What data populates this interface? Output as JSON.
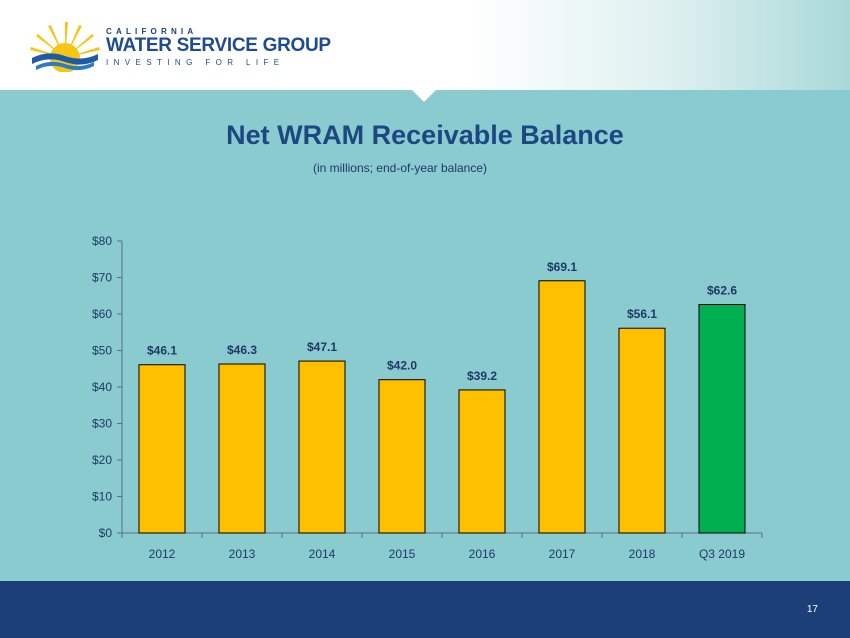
{
  "brand": {
    "line1": "CALIFORNIA",
    "line2": "WATER SERVICE GROUP",
    "line3": "INVESTING FOR LIFE"
  },
  "slide": {
    "title": "Net WRAM Receivable Balance",
    "subtitle": "(in millions; end-of-year balance)",
    "page_number": "17"
  },
  "colors": {
    "bar_default": "#ffc000",
    "bar_highlight": "#00b050",
    "text_dark": "#1d4781",
    "footer": "#1c3f79"
  },
  "chart_data": {
    "type": "bar",
    "categories": [
      "2012",
      "2013",
      "2014",
      "2015",
      "2016",
      "2017",
      "2018",
      "Q3 2019"
    ],
    "values": [
      46.1,
      46.3,
      47.1,
      42.0,
      39.2,
      69.1,
      56.1,
      62.6
    ],
    "labels": [
      "$46.1",
      "$46.3",
      "$47.1",
      "$42.0",
      "$39.2",
      "$69.1",
      "$56.1",
      "$62.6"
    ],
    "highlight_index": 7,
    "yticks": [
      "$0",
      "$10",
      "$20",
      "$30",
      "$40",
      "$50",
      "$60",
      "$70",
      "$80"
    ],
    "ylim": [
      0,
      80
    ],
    "grid": false
  }
}
